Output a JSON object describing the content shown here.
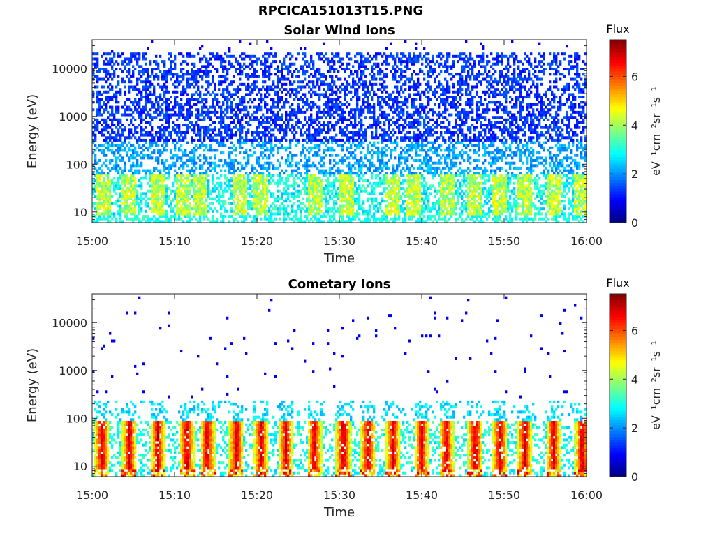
{
  "figure": {
    "title": "RPCICA151013T15.PNG"
  },
  "colormap": {
    "name": "jet",
    "stops": [
      "#00007f",
      "#0000ff",
      "#007fff",
      "#00ffff",
      "#7fff7f",
      "#ffff00",
      "#ff7f00",
      "#ff0000",
      "#7f0000"
    ]
  },
  "chart_data": [
    {
      "type": "heatmap",
      "title": "Solar Wind Ions",
      "xlabel": "Time",
      "ylabel": "Energy (eV)",
      "yscale": "log",
      "ylim": [
        6,
        40000
      ],
      "xlim_minutes": [
        0,
        60
      ],
      "x_tick_labels": [
        "15:00",
        "15:10",
        "15:20",
        "15:30",
        "15:40",
        "15:50",
        "16:00"
      ],
      "y_tick_values": [
        10,
        100,
        1000,
        10000
      ],
      "y_tick_labels": [
        "10",
        "100",
        "1000",
        "10000"
      ],
      "colorbar": {
        "label": "Flux",
        "unit": "eV⁻¹cm⁻²sr⁻¹s⁻¹",
        "range": [
          0,
          7.5
        ],
        "tick_labels": [
          "0",
          "2",
          "4",
          "6"
        ],
        "tick_values": [
          0,
          2,
          4,
          6
        ]
      },
      "description_of_content": "Sparse low-flux (≈1–2) speckle from ~100 eV to ~20000 eV; denser moderate flux (≈2–4) between ~8 and ~60 eV with brighter patches (≈4–5) at the recurring bursts",
      "burst_minutes": [
        1.5,
        4.5,
        8,
        11,
        13,
        18,
        20.5,
        27,
        31,
        36.5,
        39,
        43,
        46.5,
        49.5,
        52.5,
        56,
        59.5
      ]
    },
    {
      "type": "heatmap",
      "title": "Cometary Ions",
      "xlabel": "Time",
      "ylabel": "Energy (eV)",
      "yscale": "log",
      "ylim": [
        6,
        40000
      ],
      "xlim_minutes": [
        0,
        60
      ],
      "x_tick_labels": [
        "15:00",
        "15:10",
        "15:20",
        "15:30",
        "15:40",
        "15:50",
        "16:00"
      ],
      "y_tick_values": [
        10,
        100,
        1000,
        10000
      ],
      "y_tick_labels": [
        "10",
        "100",
        "1000",
        "10000"
      ],
      "colorbar": {
        "label": "Flux",
        "unit": "eV⁻¹cm⁻²sr⁻¹s⁻¹",
        "range": [
          0,
          7.5
        ],
        "tick_labels": [
          "0",
          "2",
          "4",
          "6"
        ],
        "tick_values": [
          0,
          2,
          4,
          6
        ]
      },
      "description_of_content": "Periodic vertical bursts of high flux (≈5–7) between ~10 and ~100 eV about every 3 minutes, sparse isolated points (≈1) above 300 eV",
      "burst_minutes": [
        1.2,
        4.5,
        8,
        11.5,
        14,
        17.5,
        20.5,
        23.5,
        27,
        30.5,
        33.5,
        36.5,
        40,
        43,
        46.5,
        49.5,
        52.5,
        56,
        59.5
      ]
    }
  ]
}
